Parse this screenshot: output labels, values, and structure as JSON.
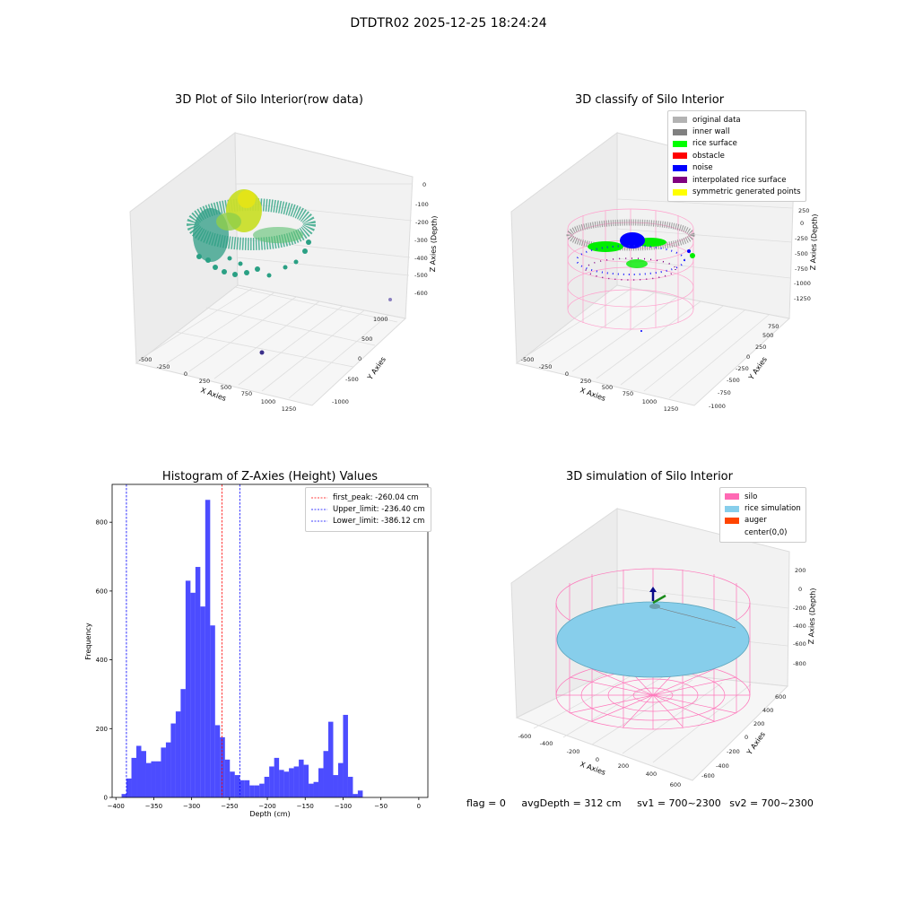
{
  "suptitle": "DTDTR02 2025-12-25 18:24:24",
  "panels": {
    "raw": {
      "title": "3D Plot of Silo Interior(row data)",
      "xlabel": "X Axies",
      "ylabel": "Y Axies",
      "zlabel": "Z Axies (Depth)",
      "xticks": [
        "-500",
        "-250",
        "0",
        "250",
        "500",
        "750",
        "1000",
        "1250"
      ],
      "yticks": [
        "-1000",
        "-500",
        "0",
        "500",
        "1000"
      ],
      "zticks": [
        "0",
        "-100",
        "-200",
        "-300",
        "-400",
        "-500",
        "-600"
      ]
    },
    "classify": {
      "title": "3D classify of Silo Interior",
      "xlabel": "X Axies",
      "ylabel": "Y Axies",
      "zlabel": "Z Axies (Depth)",
      "xticks": [
        "-500",
        "-250",
        "0",
        "250",
        "500",
        "750",
        "1000",
        "1250"
      ],
      "yticks": [
        "-1000",
        "-750",
        "-500",
        "-250",
        "0",
        "250",
        "500",
        "750"
      ],
      "zticks": [
        "250",
        "0",
        "-250",
        "-500",
        "-750",
        "-1000",
        "-1250"
      ],
      "legend": [
        {
          "label": "original data",
          "color": "#b3b3b3"
        },
        {
          "label": "inner wall",
          "color": "#808080"
        },
        {
          "label": "rice surface",
          "color": "#00ff00"
        },
        {
          "label": "obstacle",
          "color": "#ff0000"
        },
        {
          "label": "noise",
          "color": "#0000ff"
        },
        {
          "label": "interpolated rice surface",
          "color": "#800080"
        },
        {
          "label": "symmetric generated points",
          "color": "#ffff00"
        }
      ]
    },
    "simulation": {
      "title": "3D simulation of Silo Interior",
      "xlabel": "X Axies",
      "ylabel": "Y Axies",
      "zlabel": "Z Axies (Depth)",
      "xticks": [
        "-600",
        "-400",
        "-200",
        "0",
        "200",
        "400",
        "600"
      ],
      "yticks": [
        "-600",
        "-400",
        "-200",
        "0",
        "200",
        "400",
        "600"
      ],
      "zticks": [
        "200",
        "0",
        "-200",
        "-400",
        "-600",
        "-800"
      ],
      "legend": [
        {
          "label": "silo",
          "color": "#ff69b4"
        },
        {
          "label": "rice simulation",
          "color": "#87ceeb"
        },
        {
          "label": "auger",
          "color": "#ff4500"
        },
        {
          "label": "center(0,0)",
          "color": ""
        }
      ]
    }
  },
  "chart_data": {
    "type": "bar",
    "title": "Histogram of Z-Axies (Height) Values",
    "xlabel": "Depth (cm)",
    "ylabel": "Frequency",
    "xlim": [
      -405,
      12
    ],
    "ylim": [
      0,
      910
    ],
    "xticks": [
      -400,
      -350,
      -300,
      -250,
      -200,
      -150,
      -100,
      -50,
      0
    ],
    "yticks": [
      0,
      200,
      400,
      600,
      800
    ],
    "bin_start": -392.5,
    "bin_width": 6.5,
    "values": [
      10,
      55,
      115,
      150,
      135,
      100,
      105,
      105,
      145,
      160,
      215,
      250,
      315,
      630,
      595,
      670,
      555,
      865,
      500,
      210,
      175,
      110,
      75,
      65,
      50,
      50,
      35,
      35,
      40,
      60,
      90,
      115,
      80,
      75,
      85,
      90,
      110,
      95,
      40,
      45,
      85,
      135,
      220,
      65,
      100,
      240,
      60,
      10,
      20
    ],
    "bar_color": "#0000ff",
    "bar_alpha": 0.7,
    "lines": [
      {
        "label": "first_peak: -260.04 cm",
        "x": -260.04,
        "color": "#ff0000"
      },
      {
        "label": "Upper_limit: -236.40 cm",
        "x": -236.4,
        "color": "#0000ff"
      },
      {
        "label": "Lower_limit: -386.12 cm",
        "x": -386.12,
        "color": "#0000ff"
      }
    ]
  },
  "status": {
    "flag": "flag = 0",
    "avg": "avgDepth = 312 cm",
    "sv1": "sv1 = 700~2300",
    "sv2": "sv2 = 700~2300"
  }
}
